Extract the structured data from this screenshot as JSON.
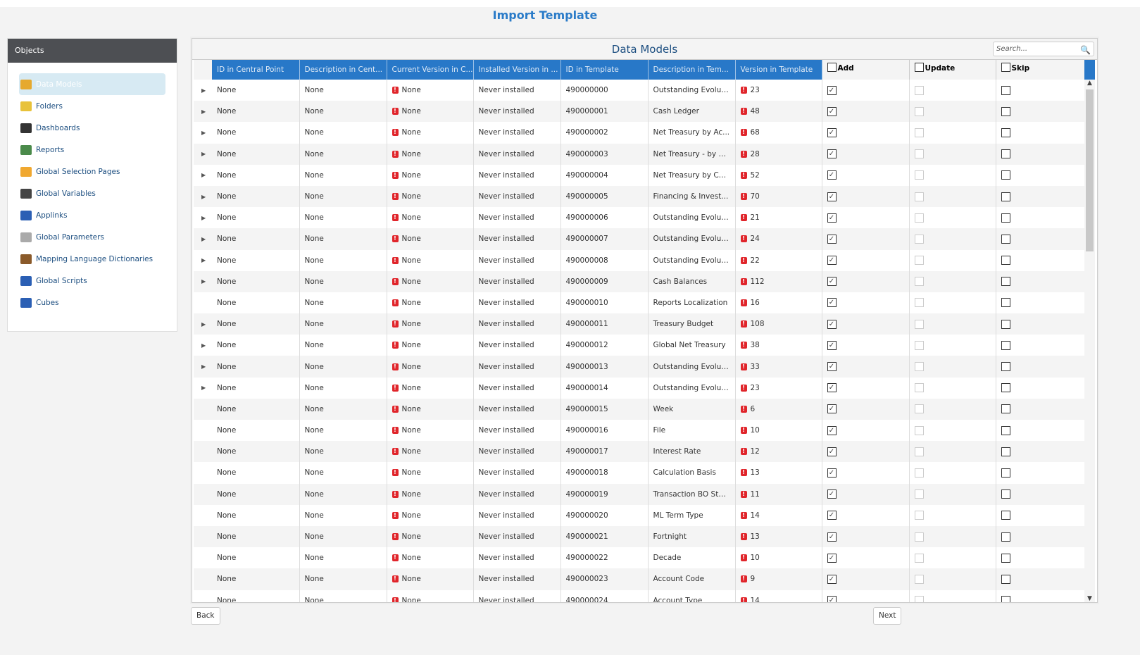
{
  "page": {
    "title": "Import Template"
  },
  "sidebar": {
    "header": "Objects",
    "items": [
      {
        "label": "Data Models",
        "icon": "data-models-icon",
        "active": true,
        "color": "#e6a92e"
      },
      {
        "label": "Folders",
        "icon": "folder-icon",
        "color": "#e8c23a"
      },
      {
        "label": "Dashboards",
        "icon": "dashboard-gauge-icon",
        "color": "#333"
      },
      {
        "label": "Reports",
        "icon": "report-icon",
        "color": "#4a8a4a"
      },
      {
        "label": "Global Selection Pages",
        "icon": "filter-gear-icon",
        "color": "#f0a830"
      },
      {
        "label": "Global Variables",
        "icon": "variable-icon",
        "color": "#444"
      },
      {
        "label": "Applinks",
        "icon": "globe-link-icon",
        "color": "#2b5fb4"
      },
      {
        "label": "Global Parameters",
        "icon": "parameters-gear-icon",
        "color": "#aaa"
      },
      {
        "label": "Mapping Language Dictionaries",
        "icon": "dictionary-book-icon",
        "color": "#8a5a2a"
      },
      {
        "label": "Global Scripts",
        "icon": "scripts-icon",
        "color": "#2b5fb4"
      },
      {
        "label": "Cubes",
        "icon": "cubes-icon",
        "color": "#2b5fb4"
      }
    ]
  },
  "table": {
    "title": "Data Models",
    "search_placeholder": "Search...",
    "columns": [
      "ID in Central Point",
      "Description in Cent...",
      "Current Version in C...",
      "Installed Version in ...",
      "ID in Template",
      "Description in Tem...",
      "Version in Template"
    ],
    "check_columns": {
      "add": "Add",
      "update": "Update",
      "skip": "Skip"
    },
    "rows": [
      {
        "expandable": true,
        "id_cp": "None",
        "desc_cp": "None",
        "current": "None",
        "installed": "Never installed",
        "id_t": "490000000",
        "desc_t": "Outstanding Evoluti...",
        "ver_t": "23",
        "add": true,
        "update": false,
        "skip": false
      },
      {
        "expandable": true,
        "id_cp": "None",
        "desc_cp": "None",
        "current": "None",
        "installed": "Never installed",
        "id_t": "490000001",
        "desc_t": "Cash Ledger",
        "ver_t": "48",
        "add": true,
        "update": false,
        "skip": false
      },
      {
        "expandable": true,
        "id_cp": "None",
        "desc_cp": "None",
        "current": "None",
        "installed": "Never installed",
        "id_t": "490000002",
        "desc_t": "Net Treasury by Ac...",
        "ver_t": "68",
        "add": true,
        "update": false,
        "skip": false
      },
      {
        "expandable": true,
        "id_cp": "None",
        "desc_cp": "None",
        "current": "None",
        "installed": "Never installed",
        "id_t": "490000003",
        "desc_t": "Net Treasury - by B...",
        "ver_t": "28",
        "add": true,
        "update": false,
        "skip": false
      },
      {
        "expandable": true,
        "id_cp": "None",
        "desc_cp": "None",
        "current": "None",
        "installed": "Never installed",
        "id_t": "490000004",
        "desc_t": "Net Treasury by Co...",
        "ver_t": "52",
        "add": true,
        "update": false,
        "skip": false
      },
      {
        "expandable": true,
        "id_cp": "None",
        "desc_cp": "None",
        "current": "None",
        "installed": "Never installed",
        "id_t": "490000005",
        "desc_t": "Financing & Invest...",
        "ver_t": "70",
        "add": true,
        "update": false,
        "skip": false
      },
      {
        "expandable": true,
        "id_cp": "None",
        "desc_cp": "None",
        "current": "None",
        "installed": "Never installed",
        "id_t": "490000006",
        "desc_t": "Outstanding Evoluti...",
        "ver_t": "21",
        "add": true,
        "update": false,
        "skip": false
      },
      {
        "expandable": true,
        "id_cp": "None",
        "desc_cp": "None",
        "current": "None",
        "installed": "Never installed",
        "id_t": "490000007",
        "desc_t": "Outstanding Evoluti...",
        "ver_t": "24",
        "add": true,
        "update": false,
        "skip": false
      },
      {
        "expandable": true,
        "id_cp": "None",
        "desc_cp": "None",
        "current": "None",
        "installed": "Never installed",
        "id_t": "490000008",
        "desc_t": "Outstanding Evoluti...",
        "ver_t": "22",
        "add": true,
        "update": false,
        "skip": false
      },
      {
        "expandable": true,
        "id_cp": "None",
        "desc_cp": "None",
        "current": "None",
        "installed": "Never installed",
        "id_t": "490000009",
        "desc_t": "Cash Balances",
        "ver_t": "112",
        "add": true,
        "update": false,
        "skip": false
      },
      {
        "expandable": false,
        "id_cp": "None",
        "desc_cp": "None",
        "current": "None",
        "installed": "Never installed",
        "id_t": "490000010",
        "desc_t": "Reports Localization",
        "ver_t": "16",
        "add": true,
        "update": false,
        "skip": false
      },
      {
        "expandable": true,
        "id_cp": "None",
        "desc_cp": "None",
        "current": "None",
        "installed": "Never installed",
        "id_t": "490000011",
        "desc_t": "Treasury Budget",
        "ver_t": "108",
        "add": true,
        "update": false,
        "skip": false
      },
      {
        "expandable": true,
        "id_cp": "None",
        "desc_cp": "None",
        "current": "None",
        "installed": "Never installed",
        "id_t": "490000012",
        "desc_t": "Global Net Treasury",
        "ver_t": "38",
        "add": true,
        "update": false,
        "skip": false
      },
      {
        "expandable": true,
        "id_cp": "None",
        "desc_cp": "None",
        "current": "None",
        "installed": "Never installed",
        "id_t": "490000013",
        "desc_t": "Outstanding Evoluti...",
        "ver_t": "33",
        "add": true,
        "update": false,
        "skip": false
      },
      {
        "expandable": true,
        "id_cp": "None",
        "desc_cp": "None",
        "current": "None",
        "installed": "Never installed",
        "id_t": "490000014",
        "desc_t": "Outstanding Evoluti...",
        "ver_t": "23",
        "add": true,
        "update": false,
        "skip": false
      },
      {
        "expandable": false,
        "id_cp": "None",
        "desc_cp": "None",
        "current": "None",
        "installed": "Never installed",
        "id_t": "490000015",
        "desc_t": "Week",
        "ver_t": "6",
        "add": true,
        "update": false,
        "skip": false
      },
      {
        "expandable": false,
        "id_cp": "None",
        "desc_cp": "None",
        "current": "None",
        "installed": "Never installed",
        "id_t": "490000016",
        "desc_t": "File",
        "ver_t": "10",
        "add": true,
        "update": false,
        "skip": false
      },
      {
        "expandable": false,
        "id_cp": "None",
        "desc_cp": "None",
        "current": "None",
        "installed": "Never installed",
        "id_t": "490000017",
        "desc_t": "Interest Rate",
        "ver_t": "12",
        "add": true,
        "update": false,
        "skip": false
      },
      {
        "expandable": false,
        "id_cp": "None",
        "desc_cp": "None",
        "current": "None",
        "installed": "Never installed",
        "id_t": "490000018",
        "desc_t": "Calculation Basis",
        "ver_t": "13",
        "add": true,
        "update": false,
        "skip": false
      },
      {
        "expandable": false,
        "id_cp": "None",
        "desc_cp": "None",
        "current": "None",
        "installed": "Never installed",
        "id_t": "490000019",
        "desc_t": "Transaction BO Sta...",
        "ver_t": "11",
        "add": true,
        "update": false,
        "skip": false
      },
      {
        "expandable": false,
        "id_cp": "None",
        "desc_cp": "None",
        "current": "None",
        "installed": "Never installed",
        "id_t": "490000020",
        "desc_t": "ML Term Type",
        "ver_t": "14",
        "add": true,
        "update": false,
        "skip": false
      },
      {
        "expandable": false,
        "id_cp": "None",
        "desc_cp": "None",
        "current": "None",
        "installed": "Never installed",
        "id_t": "490000021",
        "desc_t": "Fortnight",
        "ver_t": "13",
        "add": true,
        "update": false,
        "skip": false
      },
      {
        "expandable": false,
        "id_cp": "None",
        "desc_cp": "None",
        "current": "None",
        "installed": "Never installed",
        "id_t": "490000022",
        "desc_t": "Decade",
        "ver_t": "10",
        "add": true,
        "update": false,
        "skip": false
      },
      {
        "expandable": false,
        "id_cp": "None",
        "desc_cp": "None",
        "current": "None",
        "installed": "Never installed",
        "id_t": "490000023",
        "desc_t": "Account Code",
        "ver_t": "9",
        "add": true,
        "update": false,
        "skip": false
      },
      {
        "expandable": false,
        "id_cp": "None",
        "desc_cp": "None",
        "current": "None",
        "installed": "Never installed",
        "id_t": "490000024",
        "desc_t": "Account Type",
        "ver_t": "14",
        "add": true,
        "update": false,
        "skip": false
      }
    ]
  },
  "footer": {
    "back": "Back",
    "next": "Next"
  },
  "colors": {
    "accent": "#2878c8",
    "title": "#2a7bc8",
    "error": "#e0252b",
    "sidebar_header": "#4d4f53",
    "active_item": "#d7eaf3"
  }
}
